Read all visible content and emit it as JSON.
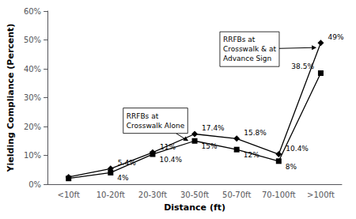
{
  "chart_data": {
    "type": "line",
    "categories": [
      "<10ft",
      "10-20ft",
      "20-30ft",
      "30-50ft",
      "50-70ft",
      "70-100ft",
      ">100ft"
    ],
    "series": [
      {
        "values": [
          2.0,
          4.0,
          10.4,
          15.0,
          12.0,
          8.0,
          38.5
        ],
        "value_labels": [
          null,
          "4%",
          "10.4%",
          "15%",
          "12%",
          "8%",
          "38.5%"
        ],
        "color": "#000000",
        "marker": "square"
      },
      {
        "values": [
          2.5,
          5.4,
          11.0,
          17.4,
          15.8,
          10.4,
          49.0
        ],
        "value_labels": [
          null,
          "5.4%",
          "11%",
          "17.4%",
          "15.8%",
          "10.4%",
          "49%"
        ],
        "color": "#000000",
        "marker": "diamond"
      }
    ],
    "xlabel": "Distance (ft)",
    "ylabel": "Yielding Compliance (Percent)",
    "ylim": [
      0,
      60
    ],
    "yticks": [
      {
        "value": 0,
        "label": "0%"
      },
      {
        "value": 10,
        "label": "10%"
      },
      {
        "value": 20,
        "label": "20%"
      },
      {
        "value": 30,
        "label": "30%"
      },
      {
        "value": 40,
        "label": "40%"
      },
      {
        "value": 50,
        "label": "50%"
      },
      {
        "value": 60,
        "label": "60%"
      }
    ],
    "annotations": [
      "RRFBs at\nCrosswalk Alone",
      "RRFBs at\nCrosswalk & at\nAdvance Sign"
    ],
    "data_labels": true,
    "grid": false
  }
}
